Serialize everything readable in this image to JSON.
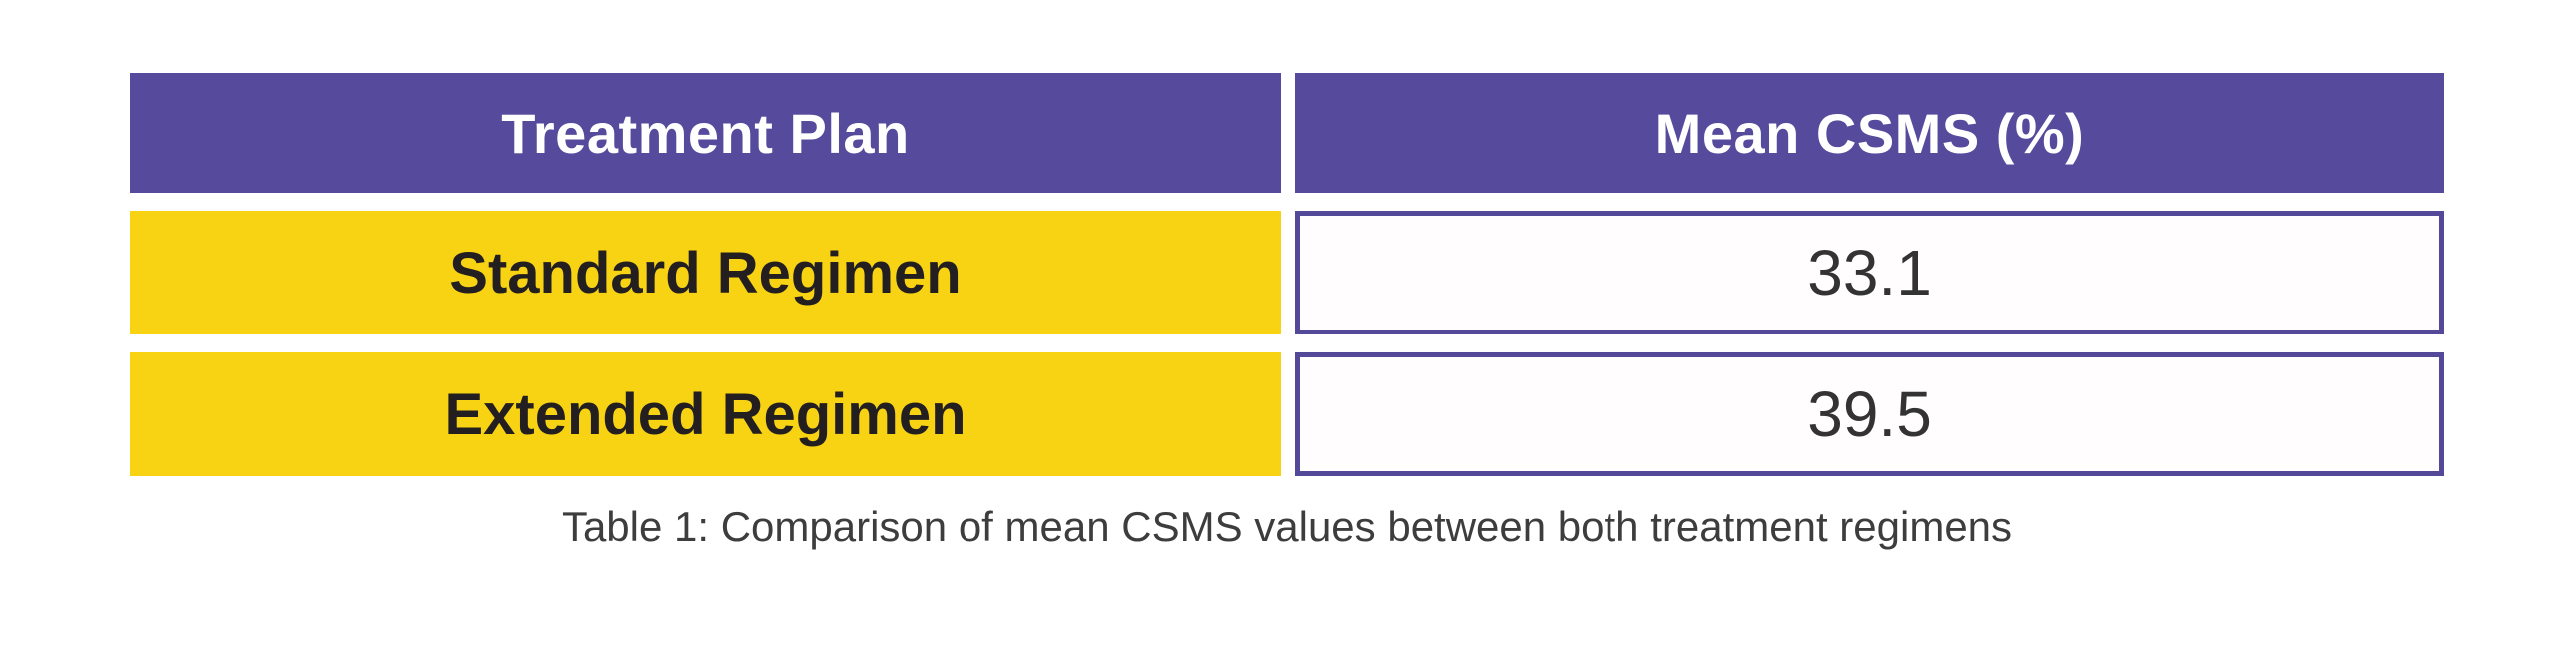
{
  "table": {
    "columns": [
      {
        "label": "Treatment Plan"
      },
      {
        "label": "Mean CSMS (%)"
      }
    ],
    "rows": [
      {
        "plan": "Standard Regimen",
        "mean_csms": "33.1"
      },
      {
        "plan": "Extended Regimen",
        "mean_csms": "39.5"
      }
    ],
    "caption": "Table 1: Comparison of mean CSMS values between both treatment regimens"
  },
  "chart_data": {
    "type": "table",
    "title": "Table 1: Comparison of mean CSMS values between both treatment regimens",
    "columns": [
      "Treatment Plan",
      "Mean CSMS (%)"
    ],
    "categories": [
      "Standard Regimen",
      "Extended Regimen"
    ],
    "values": [
      33.1,
      39.5
    ]
  },
  "colors": {
    "background": "#ffffff",
    "header_bg": "#564a9c",
    "header_text": "#ffffff",
    "row_label_bg": "#f8d313",
    "label_text": "#231f20",
    "value_bg": "#fffdfd",
    "value_border": "#544899",
    "value_text": "#333333",
    "caption_text": "#3d3d3d"
  }
}
